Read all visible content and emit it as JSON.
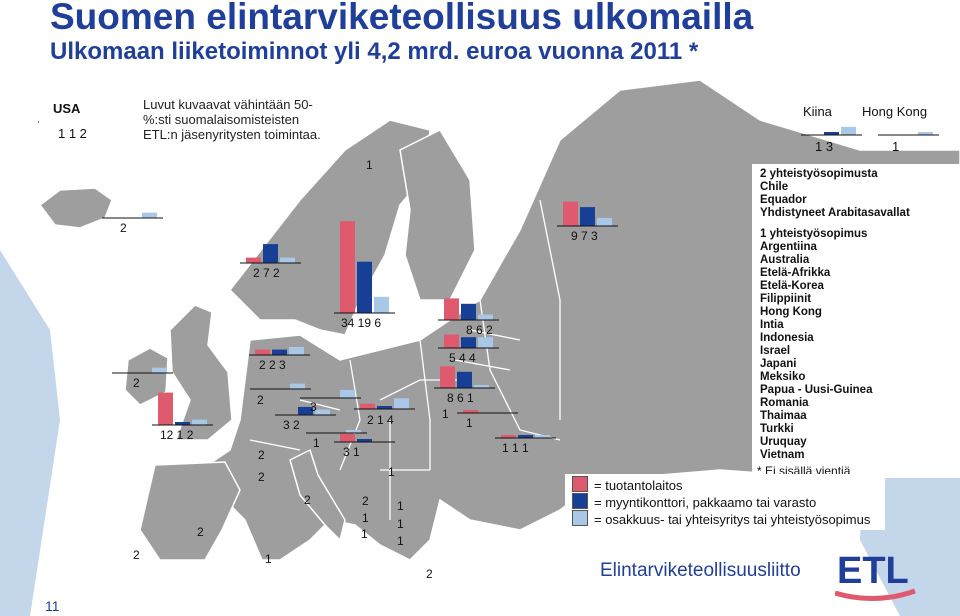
{
  "header": {
    "title": "Suomen elintarviketeollisuus ulkomailla",
    "subtitle": "Ulkomaan liiketoiminnot yli 4,2 mrd. euroa vuonna 2011 *"
  },
  "note": "Luvut kuvaavat vähintään 50-%:sti suomalaisomisteisten ETL:n jäsenyritysten toimintaa.",
  "colors": {
    "production": "#e05a6e",
    "sales": "#163f95",
    "partnership": "#a9c7e6",
    "land": "#9e9e9e",
    "sea": "#ffffff"
  },
  "usa": {
    "name": "USA",
    "counts": "1 1 2"
  },
  "asia": [
    {
      "name": "Kiina",
      "counts": "1 3"
    },
    {
      "name": "Hong Kong",
      "counts": "1"
    }
  ],
  "map_labels": [
    {
      "id": "iceland",
      "text": "2"
    },
    {
      "id": "ireland",
      "text": "2"
    },
    {
      "id": "uk",
      "text": "12 1 2"
    },
    {
      "id": "portugal",
      "text": "2"
    },
    {
      "id": "spain",
      "text": "2"
    },
    {
      "id": "norway",
      "text": "2 7 2"
    },
    {
      "id": "denmark",
      "text": "2 2 3"
    },
    {
      "id": "netherlands",
      "text": "2"
    },
    {
      "id": "germany",
      "text": "3"
    },
    {
      "id": "poland",
      "text": "3 2"
    },
    {
      "id": "czech",
      "text": "1"
    },
    {
      "id": "belgium",
      "text": "2"
    },
    {
      "id": "france",
      "text": "2"
    },
    {
      "id": "italy",
      "text": "1"
    },
    {
      "id": "switzerland",
      "text": "2"
    },
    {
      "id": "sweden_top",
      "text": "1"
    },
    {
      "id": "sweden",
      "text": "34 19 6"
    },
    {
      "id": "lithuania",
      "text": "2 1 4"
    },
    {
      "id": "belarus",
      "text": "3 1"
    },
    {
      "id": "hungary",
      "text": "1"
    },
    {
      "id": "romania",
      "text": "2"
    },
    {
      "id": "serbia",
      "text": "1"
    },
    {
      "id": "moldova",
      "text": "1"
    },
    {
      "id": "croatia",
      "text": "1"
    },
    {
      "id": "bulgaria",
      "text": "1"
    },
    {
      "id": "greece",
      "text": "1"
    },
    {
      "id": "ukraine",
      "text": "1"
    },
    {
      "id": "turkey",
      "text": "2"
    },
    {
      "id": "russia",
      "text": "9 7 3"
    },
    {
      "id": "estonia",
      "text": "8 6 2"
    },
    {
      "id": "latvia",
      "text": "5 4 4"
    },
    {
      "id": "lithuania2",
      "text": "8 6 1"
    },
    {
      "id": "kaliningrad",
      "text": "1"
    },
    {
      "id": "kazakh",
      "text": "1 1 1"
    }
  ],
  "legend_list": {
    "group2_title": "2 yhteistyösopimusta",
    "group2": [
      "Chile",
      "Equador",
      "Yhdistyneet Arabitasavallat"
    ],
    "group1_title": "1 yhteistyösopimus",
    "group1": [
      "Argentiina",
      "Australia",
      "Etelä-Afrikka",
      "Etelä-Korea",
      "Filippiinit",
      "Hong Kong",
      "Intia",
      "Indonesia",
      "Israel",
      "Japani",
      "Meksiko",
      "Papua - Uusi-Guinea",
      "Romania",
      "Thaimaa",
      "Turkki",
      "Uruquay",
      "Vietnam"
    ]
  },
  "footnote": "* Ei sisällä vientiä",
  "key": [
    {
      "label": "= tuotantolaitos",
      "color": "#e05a6e"
    },
    {
      "label": "= myyntikonttori, pakkaamo tai varasto",
      "color": "#163f95"
    },
    {
      "label": "= osakkuus- tai yhteisyritys tai yhteistyösopimus",
      "color": "#a9c7e6"
    }
  ],
  "org_name": "Elintarviketeollisuusliitto",
  "logo_text": "ETL",
  "page_number": "11",
  "bars": {
    "usa": [
      1,
      1,
      2
    ],
    "kiina": [
      0,
      1,
      3
    ],
    "hongkong": [
      0,
      0,
      1
    ],
    "iceland": [
      0,
      0,
      2
    ],
    "ireland": [
      0,
      0,
      2
    ],
    "uk": [
      12,
      1,
      2
    ],
    "norway": [
      2,
      7,
      2
    ],
    "denmark": [
      2,
      2,
      3
    ],
    "netherlands": [
      0,
      0,
      2
    ],
    "germany": [
      0,
      0,
      3
    ],
    "poland": [
      0,
      3,
      2
    ],
    "czech": [
      0,
      0,
      1
    ],
    "sweden": [
      34,
      19,
      6
    ],
    "lithuania": [
      2,
      1,
      4
    ],
    "belarus": [
      3,
      1,
      0
    ],
    "russia": [
      9,
      7,
      3
    ],
    "estonia": [
      8,
      6,
      2
    ],
    "latvia": [
      5,
      4,
      4
    ],
    "lith2": [
      8,
      6,
      1
    ],
    "kaliningrad": [
      1,
      0,
      0
    ],
    "kazakh": [
      1,
      1,
      1
    ],
    "group2": [
      0,
      0,
      2
    ],
    "group1": [
      0,
      0,
      1
    ]
  }
}
